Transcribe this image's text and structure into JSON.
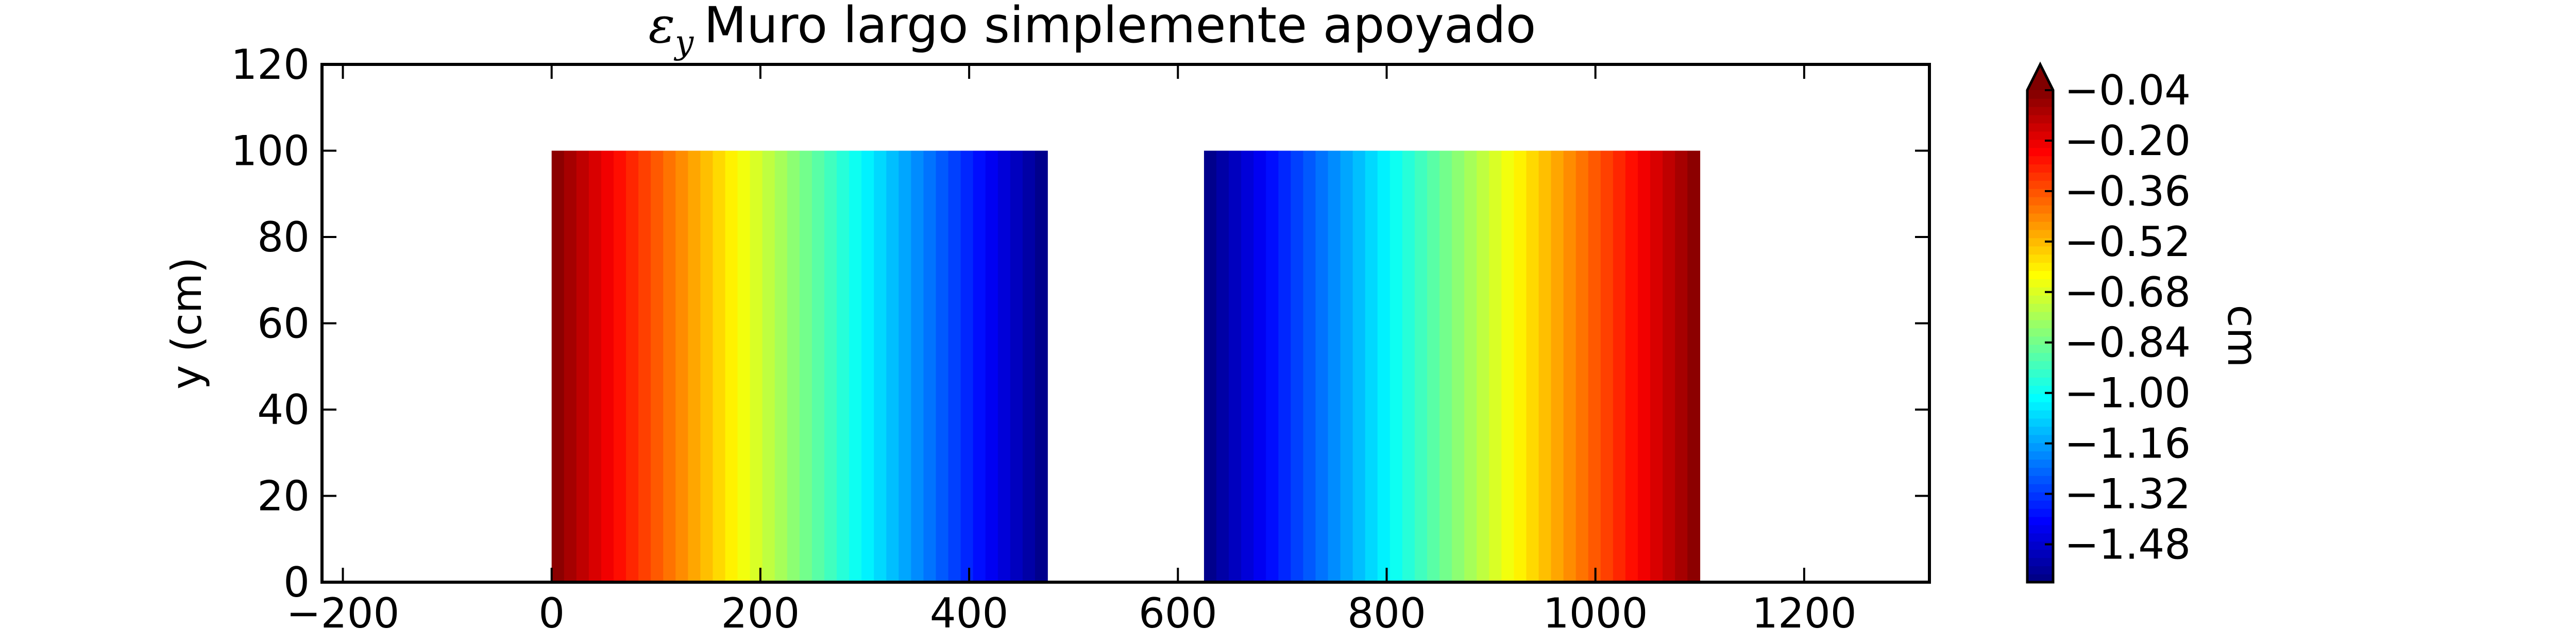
{
  "chart_data": {
    "type": "heatmap",
    "title_symbol": "ε",
    "title_subscript": "y",
    "title_text": "Muro largo simplemente apoyado",
    "xlabel": "",
    "ylabel": "y (cm)",
    "xlim": [
      -220,
      1320
    ],
    "ylim": [
      0,
      120
    ],
    "xticks": [
      -200,
      0,
      200,
      400,
      600,
      800,
      1000,
      1200
    ],
    "xtick_labels": [
      "−200",
      "0",
      "200",
      "400",
      "600",
      "800",
      "1000",
      "1200"
    ],
    "yticks": [
      0,
      20,
      40,
      60,
      80,
      100,
      120
    ],
    "ytick_labels": [
      "0",
      "20",
      "40",
      "60",
      "80",
      "100",
      "120"
    ],
    "colormap": "jet",
    "regions": [
      {
        "x0": 0,
        "x1": 475,
        "y0": 0,
        "y1": 100,
        "value_at_x0": -0.04,
        "value_at_x1": -1.6
      },
      {
        "x0": 625,
        "x1": 1100,
        "y0": 0,
        "y1": 100,
        "value_at_x0": -1.6,
        "value_at_x1": -0.04
      }
    ],
    "colorbar": {
      "label": "cm",
      "vmin": -1.6,
      "vmax": -0.04,
      "extend": "max",
      "ticks": [
        -0.04,
        -0.2,
        -0.36,
        -0.52,
        -0.68,
        -0.84,
        -1.0,
        -1.16,
        -1.32,
        -1.48
      ],
      "tick_labels": [
        "−0.04",
        "−0.20",
        "−0.36",
        "−0.52",
        "−0.68",
        "−0.84",
        "−1.00",
        "−1.16",
        "−1.32",
        "−1.48"
      ]
    }
  }
}
